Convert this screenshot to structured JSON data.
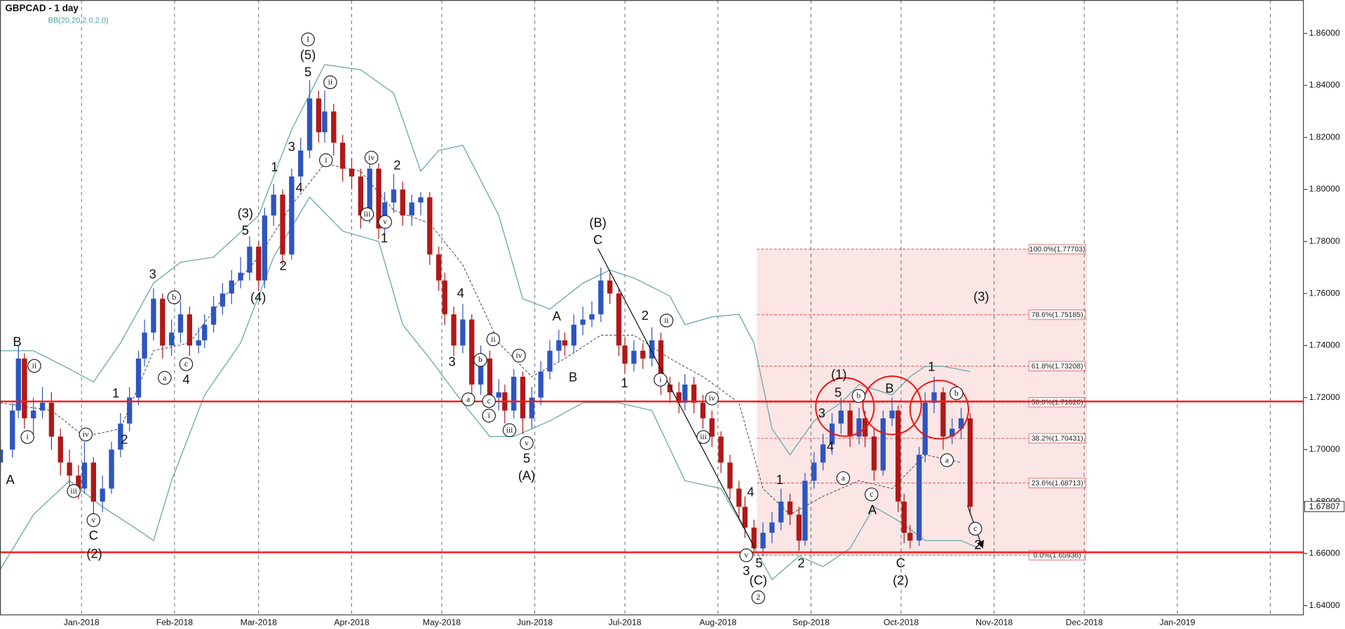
{
  "chart_data": {
    "type": "candlestick",
    "title": "GBPCAD - 1 day",
    "subtitle": "BB(20,20,2.0,2.0)",
    "up_color": "#2d55c0",
    "down_color": "#b01818",
    "x": [
      4,
      8,
      10,
      12,
      15,
      18,
      21,
      24,
      27,
      30,
      32,
      35,
      38,
      41,
      44,
      47,
      50,
      52,
      55,
      58,
      61,
      64,
      67,
      70,
      72,
      75,
      78,
      81,
      84,
      87,
      90,
      92,
      95,
      98,
      101,
      104,
      107,
      110,
      112,
      115,
      118,
      121,
      124,
      127,
      130,
      132,
      135,
      138,
      141,
      144,
      147,
      150,
      152,
      155,
      158,
      161,
      164,
      167,
      170,
      172,
      175,
      178,
      181,
      184,
      187,
      190,
      192,
      195,
      198,
      201,
      204,
      207,
      210,
      212,
      215,
      218,
      221,
      224,
      227,
      230,
      232,
      235,
      238,
      241,
      244,
      247,
      250,
      252,
      255,
      258,
      261,
      264,
      267,
      270,
      272,
      275,
      278,
      281,
      284,
      287,
      290,
      292,
      295,
      298,
      301,
      303,
      305,
      307,
      310,
      312,
      315,
      318,
      321,
      324,
      327
    ],
    "open": [
      1.695,
      1.7,
      1.715,
      1.735,
      1.712,
      1.715,
      1.718,
      1.705,
      1.695,
      1.69,
      1.685,
      1.695,
      1.68,
      1.685,
      1.7,
      1.71,
      1.72,
      1.735,
      1.745,
      1.758,
      1.74,
      1.745,
      1.752,
      1.74,
      1.742,
      1.748,
      1.755,
      1.76,
      1.765,
      1.768,
      1.778,
      1.765,
      1.79,
      1.798,
      1.775,
      1.805,
      1.815,
      1.835,
      1.822,
      1.83,
      1.818,
      1.808,
      1.805,
      1.79,
      1.808,
      1.785,
      1.795,
      1.8,
      1.79,
      1.795,
      1.797,
      1.775,
      1.765,
      1.752,
      1.74,
      1.75,
      1.725,
      1.735,
      1.72,
      1.722,
      1.715,
      1.728,
      1.712,
      1.72,
      1.73,
      1.738,
      1.742,
      1.74,
      1.748,
      1.75,
      1.752,
      1.765,
      1.76,
      1.74,
      1.733,
      1.738,
      1.735,
      1.742,
      1.725,
      1.722,
      1.718,
      1.725,
      1.718,
      1.712,
      1.705,
      1.695,
      1.685,
      1.678,
      1.67,
      1.662,
      1.668,
      1.672,
      1.68,
      1.675,
      1.665,
      1.688,
      1.695,
      1.702,
      1.71,
      1.715,
      1.705,
      1.712,
      1.705,
      1.692,
      1.712,
      1.715,
      1.68,
      1.668,
      1.665,
      1.698,
      1.718,
      1.722,
      1.705,
      1.708,
      1.712
    ],
    "high": [
      1.704,
      1.718,
      1.74,
      1.737,
      1.72,
      1.724,
      1.722,
      1.708,
      1.7,
      1.694,
      1.703,
      1.697,
      1.69,
      1.703,
      1.714,
      1.724,
      1.738,
      1.75,
      1.762,
      1.76,
      1.75,
      1.757,
      1.755,
      1.747,
      1.752,
      1.759,
      1.764,
      1.769,
      1.774,
      1.782,
      1.78,
      1.793,
      1.802,
      1.8,
      1.808,
      1.82,
      1.842,
      1.838,
      1.838,
      1.833,
      1.821,
      1.812,
      1.808,
      1.812,
      1.81,
      1.799,
      1.806,
      1.803,
      1.798,
      1.799,
      1.799,
      1.778,
      1.768,
      1.755,
      1.756,
      1.752,
      1.74,
      1.738,
      1.727,
      1.725,
      1.731,
      1.73,
      1.724,
      1.734,
      1.742,
      1.746,
      1.745,
      1.752,
      1.755,
      1.757,
      1.77,
      1.768,
      1.762,
      1.743,
      1.742,
      1.741,
      1.747,
      1.745,
      1.728,
      1.726,
      1.729,
      1.728,
      1.721,
      1.715,
      1.707,
      1.698,
      1.688,
      1.682,
      1.673,
      1.672,
      1.676,
      1.685,
      1.683,
      1.678,
      1.691,
      1.699,
      1.706,
      1.714,
      1.72,
      1.718,
      1.716,
      1.715,
      1.708,
      1.715,
      1.72,
      1.717,
      1.683,
      1.671,
      1.701,
      1.722,
      1.728,
      1.724,
      1.712,
      1.716,
      1.714
    ],
    "low": [
      1.692,
      1.697,
      1.712,
      1.708,
      1.706,
      1.712,
      1.7,
      1.69,
      1.686,
      1.681,
      1.683,
      1.674,
      1.676,
      1.683,
      1.697,
      1.707,
      1.717,
      1.732,
      1.742,
      1.735,
      1.736,
      1.741,
      1.736,
      1.737,
      1.739,
      1.745,
      1.752,
      1.756,
      1.762,
      1.765,
      1.761,
      1.762,
      1.786,
      1.771,
      1.773,
      1.802,
      1.812,
      1.818,
      1.818,
      1.813,
      1.803,
      1.8,
      1.785,
      1.787,
      1.781,
      1.782,
      1.791,
      1.786,
      1.786,
      1.79,
      1.771,
      1.761,
      1.748,
      1.736,
      1.737,
      1.721,
      1.721,
      1.716,
      1.715,
      1.71,
      1.712,
      1.706,
      1.708,
      1.717,
      1.727,
      1.734,
      1.736,
      1.737,
      1.744,
      1.747,
      1.749,
      1.756,
      1.736,
      1.729,
      1.73,
      1.731,
      1.732,
      1.721,
      1.718,
      1.714,
      1.715,
      1.714,
      1.708,
      1.701,
      1.691,
      1.681,
      1.674,
      1.666,
      1.659,
      1.659,
      1.664,
      1.669,
      1.671,
      1.661,
      1.663,
      1.685,
      1.692,
      1.698,
      1.706,
      1.701,
      1.702,
      1.701,
      1.688,
      1.69,
      1.709,
      1.676,
      1.664,
      1.662,
      1.663,
      1.695,
      1.714,
      1.7,
      1.702,
      1.704,
      1.675
    ],
    "close": [
      1.7,
      1.715,
      1.735,
      1.712,
      1.715,
      1.718,
      1.705,
      1.695,
      1.69,
      1.685,
      1.695,
      1.68,
      1.685,
      1.7,
      1.71,
      1.72,
      1.735,
      1.745,
      1.758,
      1.74,
      1.745,
      1.752,
      1.74,
      1.742,
      1.748,
      1.755,
      1.76,
      1.765,
      1.768,
      1.778,
      1.765,
      1.79,
      1.798,
      1.775,
      1.805,
      1.815,
      1.835,
      1.822,
      1.83,
      1.818,
      1.808,
      1.805,
      1.79,
      1.808,
      1.785,
      1.795,
      1.8,
      1.79,
      1.795,
      1.797,
      1.775,
      1.765,
      1.752,
      1.74,
      1.75,
      1.725,
      1.735,
      1.72,
      1.722,
      1.715,
      1.728,
      1.712,
      1.72,
      1.73,
      1.738,
      1.742,
      1.74,
      1.748,
      1.75,
      1.752,
      1.765,
      1.76,
      1.74,
      1.733,
      1.738,
      1.735,
      1.742,
      1.725,
      1.722,
      1.718,
      1.725,
      1.718,
      1.712,
      1.705,
      1.695,
      1.685,
      1.678,
      1.67,
      1.662,
      1.668,
      1.672,
      1.68,
      1.675,
      1.665,
      1.688,
      1.695,
      1.702,
      1.71,
      1.715,
      1.705,
      1.712,
      1.705,
      1.692,
      1.712,
      1.715,
      1.68,
      1.668,
      1.665,
      1.698,
      1.718,
      1.722,
      1.705,
      1.708,
      1.712,
      1.678
    ],
    "bands": {
      "color": "#6fa9a9",
      "upper": {
        "x": [
          4,
          15,
          27,
          35,
          44,
          55,
          64,
          75,
          90,
          101,
          112,
          124,
          135,
          144,
          150,
          158,
          170,
          178,
          187,
          198,
          207,
          215,
          227,
          232,
          241,
          250,
          255,
          261,
          267,
          275,
          284,
          290,
          301,
          307,
          312,
          318,
          327
        ],
        "values": [
          1.738,
          1.738,
          1.731,
          1.726,
          1.741,
          1.764,
          1.772,
          1.774,
          1.79,
          1.823,
          1.848,
          1.846,
          1.837,
          1.807,
          1.815,
          1.817,
          1.79,
          1.758,
          1.754,
          1.764,
          1.769,
          1.766,
          1.759,
          1.748,
          1.751,
          1.752,
          1.741,
          1.708,
          1.698,
          1.711,
          1.718,
          1.725,
          1.721,
          1.728,
          1.732,
          1.732,
          1.73
        ]
      },
      "middle": {
        "x": [
          4,
          21,
          32,
          44,
          55,
          67,
          78,
          90,
          101,
          112,
          124,
          135,
          147,
          158,
          170,
          181,
          192,
          204,
          215,
          227,
          238,
          250,
          258,
          267,
          278,
          290,
          301,
          312,
          324
        ],
        "values": [
          1.718,
          1.715,
          1.705,
          1.708,
          1.738,
          1.741,
          1.758,
          1.774,
          1.794,
          1.81,
          1.807,
          1.792,
          1.787,
          1.771,
          1.741,
          1.728,
          1.735,
          1.744,
          1.744,
          1.735,
          1.728,
          1.718,
          1.685,
          1.675,
          1.682,
          1.688,
          1.685,
          1.698,
          1.695
        ]
      },
      "lower": {
        "x": [
          4,
          15,
          27,
          38,
          50,
          55,
          61,
          72,
          84,
          95,
          107,
          118,
          130,
          138,
          147,
          158,
          167,
          175,
          187,
          198,
          210,
          221,
          232,
          244,
          252,
          261,
          270,
          278,
          287,
          295,
          304,
          312,
          324,
          330
        ],
        "values": [
          1.654,
          1.675,
          1.688,
          1.678,
          1.669,
          1.665,
          1.688,
          1.721,
          1.741,
          1.774,
          1.797,
          1.784,
          1.78,
          1.748,
          1.735,
          1.718,
          1.705,
          1.705,
          1.711,
          1.718,
          1.718,
          1.715,
          1.688,
          1.685,
          1.669,
          1.65,
          1.659,
          1.655,
          1.662,
          1.678,
          1.672,
          1.665,
          1.665,
          1.662
        ]
      }
    },
    "xlim": [
      3.86,
      438.14
    ],
    "ylim": [
      1.63628,
      1.87285
    ],
    "xticks": [
      {
        "value": 31,
        "label": "Jan-2018"
      },
      {
        "value": 62,
        "label": "Feb-2018"
      },
      {
        "value": 90,
        "label": "Mar-2018"
      },
      {
        "value": 121,
        "label": "Apr-2018"
      },
      {
        "value": 151,
        "label": "May-2018"
      },
      {
        "value": 182,
        "label": "Jun-2018"
      },
      {
        "value": 212,
        "label": "Jul-2018"
      },
      {
        "value": 243,
        "label": "Aug-2018"
      },
      {
        "value": 274,
        "label": "Sep-2018"
      },
      {
        "value": 304,
        "label": "Oct-2018"
      },
      {
        "value": 335,
        "label": "Nov-2018"
      },
      {
        "value": 365,
        "label": "Dec-2018"
      },
      {
        "value": 396,
        "label": "Jan-2019"
      },
      {
        "value": 427,
        "label": null
      }
    ],
    "yticks": [
      {
        "value": 1.64,
        "label": "1.64000"
      },
      {
        "value": 1.66,
        "label": "1.66000"
      },
      {
        "value": 1.68,
        "label": "1.68000"
      },
      {
        "value": 1.7,
        "label": "1.70000"
      },
      {
        "value": 1.72,
        "label": "1.72000"
      },
      {
        "value": 1.74,
        "label": "1.74000"
      },
      {
        "value": 1.76,
        "label": "1.76000"
      },
      {
        "value": 1.78,
        "label": "1.78000"
      },
      {
        "value": 1.8,
        "label": "1.80000"
      },
      {
        "value": 1.82,
        "label": "1.82000"
      },
      {
        "value": 1.84,
        "label": "1.84000"
      },
      {
        "value": 1.86,
        "label": "1.86000"
      }
    ],
    "last_price": 1.67807,
    "hlines": [
      1.7185,
      1.6605
    ],
    "hline_color": "#ff1a1a",
    "fib": {
      "x": [
        256,
        366
      ],
      "color": "#e04848",
      "levels": [
        {
          "value": 1.77703,
          "label": "100.0%(1.77703)"
        },
        {
          "value": 1.75185,
          "label": "78.6%(1.75185)"
        },
        {
          "value": 1.73208,
          "label": "61.8%(1.73208)"
        },
        {
          "value": 1.7182,
          "label": "50.0%(1.71820)"
        },
        {
          "value": 1.70431,
          "label": "38.2%(1.70431)"
        },
        {
          "value": 1.68713,
          "label": "23.6%(1.68713)"
        },
        {
          "value": 1.65936,
          "label": "0.0%(1.65936)"
        }
      ]
    },
    "annotations": [
      "B",
      "A",
      "i",
      "ii",
      "iv",
      "iii",
      "v",
      "C",
      "(2)",
      "1",
      "2",
      "3",
      "b",
      "a",
      "c",
      "4",
      "(3)",
      "5",
      "(4)",
      "1",
      "4",
      "2",
      "3",
      "5",
      "(5)",
      "1",
      "ii",
      "i",
      "iv",
      "2",
      "iii",
      "v",
      "1",
      "4",
      "3",
      "b",
      "ii",
      "iv",
      "a",
      "c",
      "i",
      "iii",
      "v",
      "5",
      "(A)",
      "A",
      "B",
      "(B)",
      "C",
      "ii",
      "2",
      "1",
      "i",
      "iv",
      "iii",
      "4",
      "v",
      "5",
      "3",
      "(C)",
      "2",
      "1",
      "2",
      "3",
      "5",
      "(1)",
      "b",
      "4",
      "a",
      "c",
      "A",
      "B",
      "C",
      "(2)",
      "1",
      "b",
      "a",
      "(3)",
      "c",
      "2"
    ]
  }
}
